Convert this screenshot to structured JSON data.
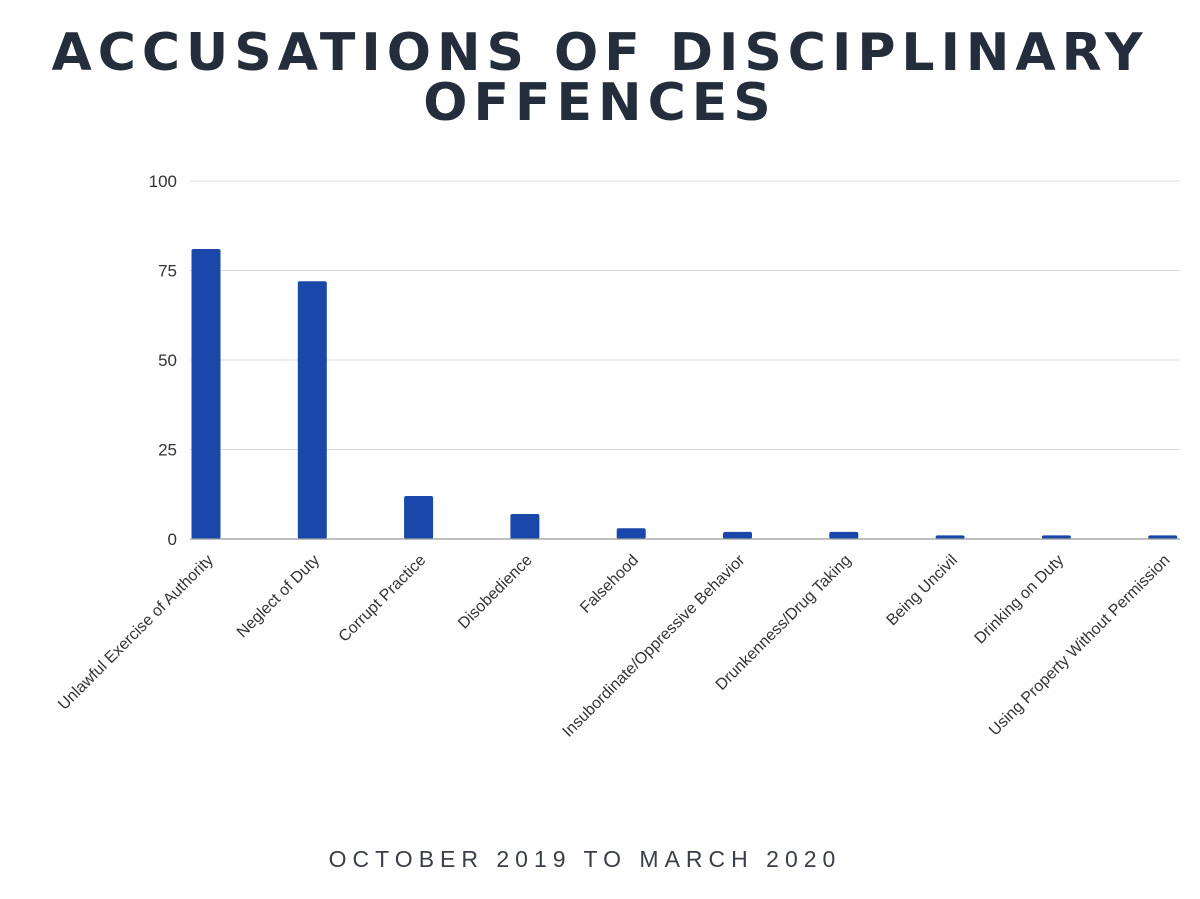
{
  "chart_data": {
    "type": "bar",
    "title": "ACCUSATIONS OF DISCIPLINARY OFFENCES",
    "subtitle": "OCTOBER 2019 TO MARCH 2020",
    "xlabel": "",
    "ylabel": "",
    "ylim": [
      0,
      100
    ],
    "yticks": [
      "0",
      "25",
      "50",
      "75",
      "100"
    ],
    "grid": true,
    "categories": [
      "Unlawful Exercise of Authority",
      "Neglect of Duty",
      "Corrupt Practice",
      "Disobedience",
      "Falsehood",
      "Insubordinate/Oppressive Behavior",
      "Drunkenness/Drug Taking",
      "Being Uncivil",
      "Drinking on Duty",
      "Using Property Without Permission"
    ],
    "values": [
      81,
      72,
      12,
      7,
      3,
      2,
      2,
      1,
      1,
      1
    ],
    "bar_color": "#1a48aa"
  }
}
